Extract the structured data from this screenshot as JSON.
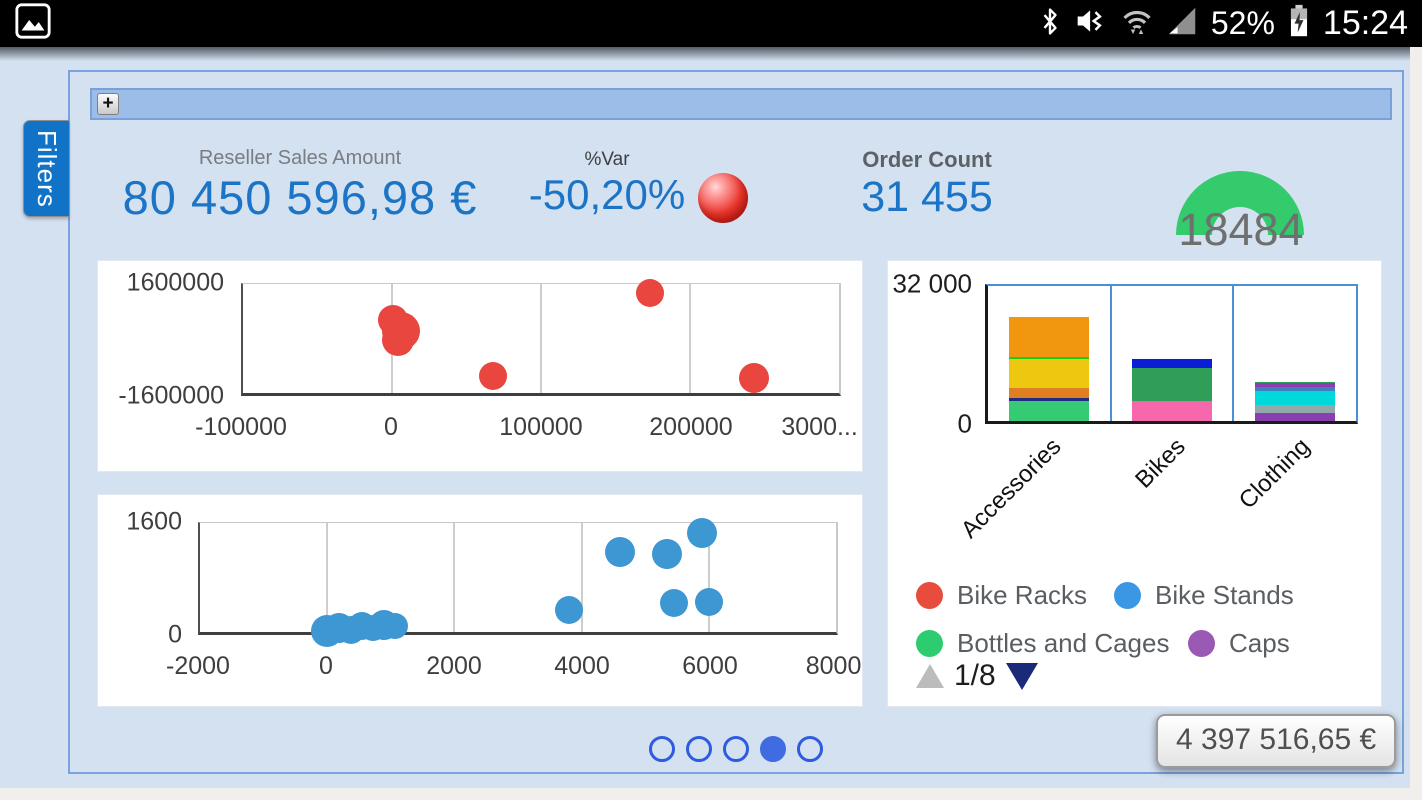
{
  "status_bar": {
    "time": "15:24",
    "battery": "52%",
    "icons": [
      "gallery-icon",
      "bluetooth-icon",
      "mute-vibrate-icon",
      "wifi-icon",
      "signal-icon",
      "battery-charging-icon"
    ]
  },
  "filters_tab": {
    "label": "Filters"
  },
  "filter_bar": {
    "expand_button": "+"
  },
  "kpis": {
    "reseller_sales": {
      "label": "Reseller Sales Amount",
      "value": "80 450 596,98 €"
    },
    "pct_var": {
      "label": "%Var",
      "value": "-50,20%",
      "indicator": "red-sphere",
      "indicator_color": "#e8362c"
    },
    "order_count": {
      "label": "Order Count",
      "value": "31 455"
    }
  },
  "carousel": {
    "count": 5,
    "active_index": 3
  },
  "tooltip": {
    "value": "4 397 516,65 €"
  },
  "colors": {
    "accent_blue": "#1b74c5",
    "page_bg": "#d3e1f1",
    "dashboard_border": "#7aa2dc",
    "filter_bar_bg": "#9dbde9",
    "filters_tab_bg": "#1173c8"
  },
  "chart_data": [
    {
      "id": "bubble-red",
      "type": "scatter",
      "series_color": "#e8463f",
      "x_range": [
        -100000,
        300000
      ],
      "y_range": [
        -1600000,
        1600000
      ],
      "x_gridlines": [
        0,
        100000,
        200000
      ],
      "x_ticks": [
        {
          "label": "-100000",
          "x": -100000
        },
        {
          "label": "0",
          "x": 0
        },
        {
          "label": "100000",
          "x": 100000
        },
        {
          "label": "200000",
          "x": 200000
        },
        {
          "label": "3000...",
          "x": 300000,
          "shift": -78
        }
      ],
      "y_ticks": [
        {
          "label": "1600000",
          "y": 1600000
        },
        {
          "label": "-1600000",
          "y": -1600000
        }
      ],
      "points": [
        {
          "x": 1000,
          "y": 550000,
          "r": 15
        },
        {
          "x": 6000,
          "y": 230000,
          "r": 19
        },
        {
          "x": 4000,
          "y": -30000,
          "r": 16
        },
        {
          "x": 68000,
          "y": -1100000,
          "r": 14
        },
        {
          "x": 173000,
          "y": 1350000,
          "r": 14
        },
        {
          "x": 243000,
          "y": -1150000,
          "r": 15
        }
      ]
    },
    {
      "id": "bubble-blue",
      "type": "scatter",
      "series_color": "#3d97d3",
      "x_range": [
        -2000,
        8000
      ],
      "y_range": [
        0,
        1600
      ],
      "x_gridlines": [
        0,
        2000,
        4000,
        6000
      ],
      "x_ticks": [
        {
          "label": "-2000",
          "x": -2000
        },
        {
          "label": "0",
          "x": 0
        },
        {
          "label": "2000",
          "x": 2000
        },
        {
          "label": "4000",
          "x": 4000
        },
        {
          "label": "6000",
          "x": 6000
        },
        {
          "label": "8000",
          "x": 8000,
          "shift": -58
        }
      ],
      "y_ticks": [
        {
          "label": "1600",
          "y": 1600
        },
        {
          "label": "0",
          "y": 0
        }
      ],
      "points": [
        {
          "x": 0,
          "y": 20,
          "r": 16
        },
        {
          "x": 180,
          "y": 55,
          "r": 15
        },
        {
          "x": 380,
          "y": 35,
          "r": 14
        },
        {
          "x": 550,
          "y": 85,
          "r": 14
        },
        {
          "x": 720,
          "y": 65,
          "r": 13
        },
        {
          "x": 900,
          "y": 105,
          "r": 15
        },
        {
          "x": 1060,
          "y": 95,
          "r": 13
        },
        {
          "x": 3800,
          "y": 330,
          "r": 14
        },
        {
          "x": 4600,
          "y": 1170,
          "r": 15
        },
        {
          "x": 5350,
          "y": 1150,
          "r": 15
        },
        {
          "x": 5900,
          "y": 1450,
          "r": 15
        },
        {
          "x": 5450,
          "y": 430,
          "r": 14
        },
        {
          "x": 6000,
          "y": 440,
          "r": 14
        }
      ]
    },
    {
      "id": "stacked-bars",
      "type": "bar",
      "stacked": true,
      "y_max": 32000,
      "y_ticks": [
        {
          "label": "32 000",
          "y": 32000
        },
        {
          "label": "0",
          "y": 0
        }
      ],
      "categories": [
        {
          "name": "Accessories",
          "segments": [
            {
              "value": 4800,
              "color": "#35ca74"
            },
            {
              "value": 690,
              "color": "#202a80"
            },
            {
              "value": 2290,
              "color": "#e07e22"
            },
            {
              "value": 6860,
              "color": "#eec710"
            },
            {
              "value": 460,
              "color": "#17d117"
            },
            {
              "value": 9600,
              "color": "#f0960f"
            }
          ]
        },
        {
          "name": "Bikes",
          "segments": [
            {
              "value": 4800,
              "color": "#f767ab"
            },
            {
              "value": 7770,
              "color": "#2f9e58"
            },
            {
              "value": 2060,
              "color": "#0a1ed6"
            }
          ]
        },
        {
          "name": "Clothing",
          "segments": [
            {
              "value": 1830,
              "color": "#8a3fb0"
            },
            {
              "value": 2060,
              "color": "#93a8a8"
            },
            {
              "value": 3200,
              "color": "#00d9dc"
            },
            {
              "value": 915,
              "color": "#3f7ec0"
            },
            {
              "value": 915,
              "color": "#8a3fb0"
            },
            {
              "value": 230,
              "color": "#2aa05a"
            }
          ]
        }
      ],
      "legend": {
        "items": [
          {
            "label": "Bike Racks",
            "color": "#e74c3c"
          },
          {
            "label": "Bike Stands",
            "color": "#3b97e3"
          },
          {
            "label": "Bottles and Cages",
            "color": "#2ecc71"
          },
          {
            "label": "Caps",
            "color": "#9b59b6"
          }
        ],
        "page": "1/8"
      }
    },
    {
      "id": "half-donut-gauge",
      "type": "gauge",
      "value": "18484",
      "color": "#33cb6b"
    }
  ]
}
